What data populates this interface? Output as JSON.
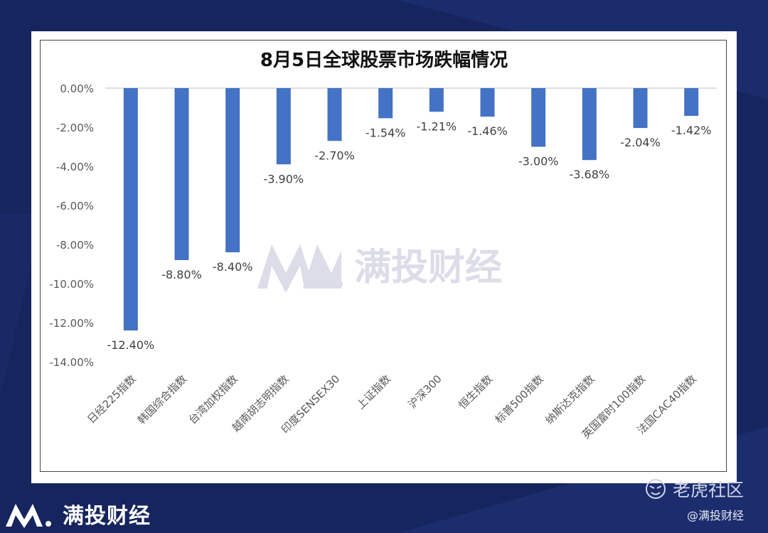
{
  "branding": {
    "watermark_text": "满投财经",
    "bottom_brand_text": "满投财经",
    "platform_logo_text": "老虎社区",
    "author_tag": "@满投财经"
  },
  "colors": {
    "background": "#16255e",
    "bar": "#4472c4",
    "watermark": "#dcdde8"
  },
  "chart_data": {
    "type": "bar",
    "title": "8月5日全球股票市场跌幅情况",
    "xlabel": "",
    "ylabel": "",
    "categories": [
      "日经225指数",
      "韩国综合指数",
      "台湾加权指数",
      "越南胡志明指数",
      "印度SENSEX30",
      "上证指数",
      "沪深300",
      "恒生指数",
      "标普500指数",
      "纳斯达克指数",
      "英国富时100指数",
      "法国CAC40指数"
    ],
    "values": [
      -12.4,
      -8.8,
      -8.4,
      -3.9,
      -2.7,
      -1.54,
      -1.21,
      -1.46,
      -3.0,
      -3.68,
      -2.04,
      -1.42
    ],
    "data_labels": [
      "-12.40%",
      "-8.80%",
      "-8.40%",
      "-3.90%",
      "-2.70%",
      "-1.54%",
      "-1.21%",
      "-1.46%",
      "-3.00%",
      "-3.68%",
      "-2.04%",
      "-1.42%"
    ],
    "ylim": [
      -14,
      0
    ],
    "yticks": [
      0,
      -2,
      -4,
      -6,
      -8,
      -10,
      -12,
      -14
    ],
    "ytick_labels": [
      "0.00%",
      "-2.00%",
      "-4.00%",
      "-6.00%",
      "-8.00%",
      "-10.00%",
      "-12.00%",
      "-14.00%"
    ],
    "grid": false,
    "legend": "none"
  }
}
